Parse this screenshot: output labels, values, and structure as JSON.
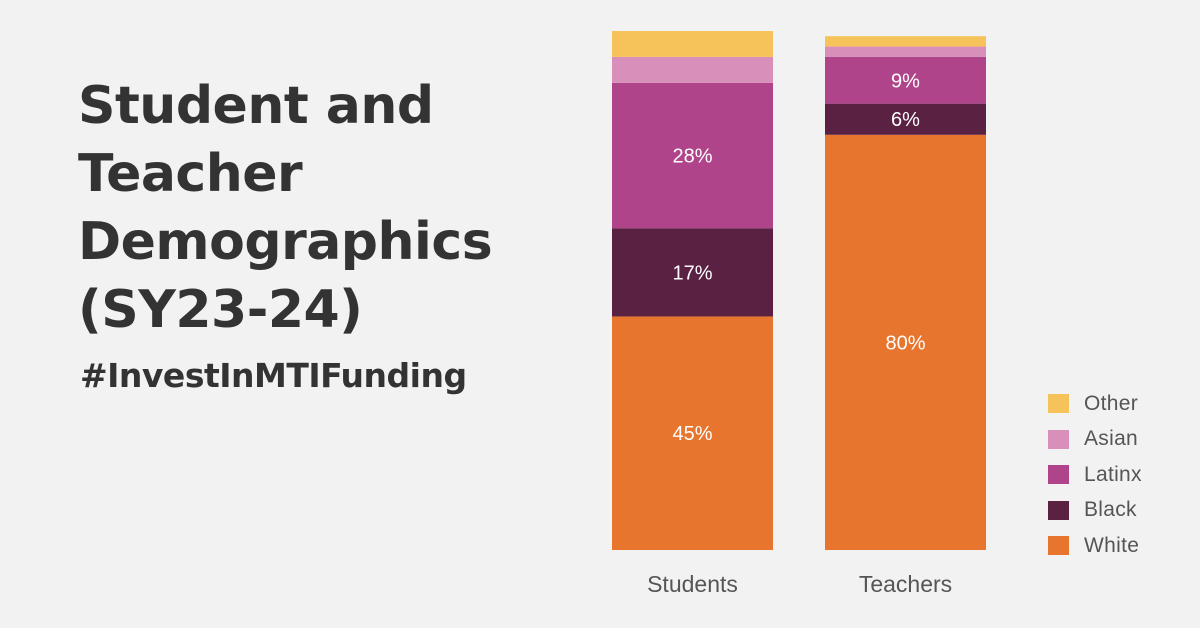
{
  "title_lines": [
    "Student and",
    "Teacher",
    "Demographics",
    "(SY23-24)"
  ],
  "hashtag": "#InvestInMTIFunding",
  "legend": [
    {
      "label": "Other",
      "color": "#f6c35b"
    },
    {
      "label": "Asian",
      "color": "#d88fba"
    },
    {
      "label": "Latinx",
      "color": "#b0448b"
    },
    {
      "label": "Black",
      "color": "#5a2143"
    },
    {
      "label": "White",
      "color": "#e8752d"
    }
  ],
  "chart_data": {
    "type": "bar",
    "stacked": true,
    "categories": [
      "Students",
      "Teachers"
    ],
    "series": [
      {
        "name": "White",
        "values": [
          45,
          80
        ],
        "labels": [
          "45%",
          "80%"
        ],
        "color": "#e8752d"
      },
      {
        "name": "Black",
        "values": [
          17,
          6
        ],
        "labels": [
          "17%",
          "6%"
        ],
        "color": "#5a2143"
      },
      {
        "name": "Latinx",
        "values": [
          28,
          9
        ],
        "labels": [
          "28%",
          "9%"
        ],
        "color": "#b0448b"
      },
      {
        "name": "Asian",
        "values": [
          5,
          2
        ],
        "labels": [
          "",
          ""
        ],
        "color": "#d88fba"
      },
      {
        "name": "Other",
        "values": [
          5,
          2
        ],
        "labels": [
          "",
          ""
        ],
        "color": "#f6c35b"
      }
    ],
    "ylim": [
      0,
      100
    ],
    "grid": false,
    "legend_position": "bottom-right"
  }
}
